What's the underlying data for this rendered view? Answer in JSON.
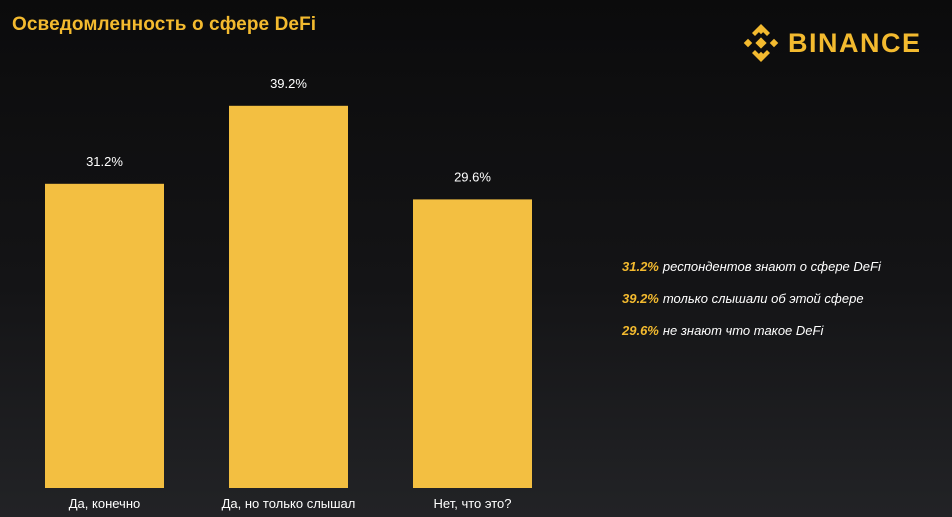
{
  "title": "Осведомленность о сфере DeFi",
  "brand": {
    "name": "BINANCE",
    "icon": "binance-diamond-icon",
    "color": "#f3ba2f"
  },
  "colors": {
    "accent": "#f3ba2f",
    "bar": "#f3bf41",
    "text": "#ffffff"
  },
  "chart_data": {
    "type": "bar",
    "title": "Осведомленность о сфере DeFi",
    "categories": [
      "Да, конечно",
      "Да, но только слышал",
      "Нет, что это?"
    ],
    "values": [
      31.2,
      39.2,
      29.6
    ],
    "data_labels": [
      "31.2%",
      "39.2%",
      "29.6%"
    ],
    "xlabel": "",
    "ylabel": "",
    "ylim": [
      0,
      40
    ],
    "unit": "%",
    "grid": false,
    "legend_position": "none"
  },
  "legend": [
    {
      "value": "31.2%",
      "text": "респондентов знают о сфере DeFi"
    },
    {
      "value": "39.2%",
      "text": "только слышали об этой сфере"
    },
    {
      "value": "29.6%",
      "text": "не знают что такое DeFi"
    }
  ]
}
